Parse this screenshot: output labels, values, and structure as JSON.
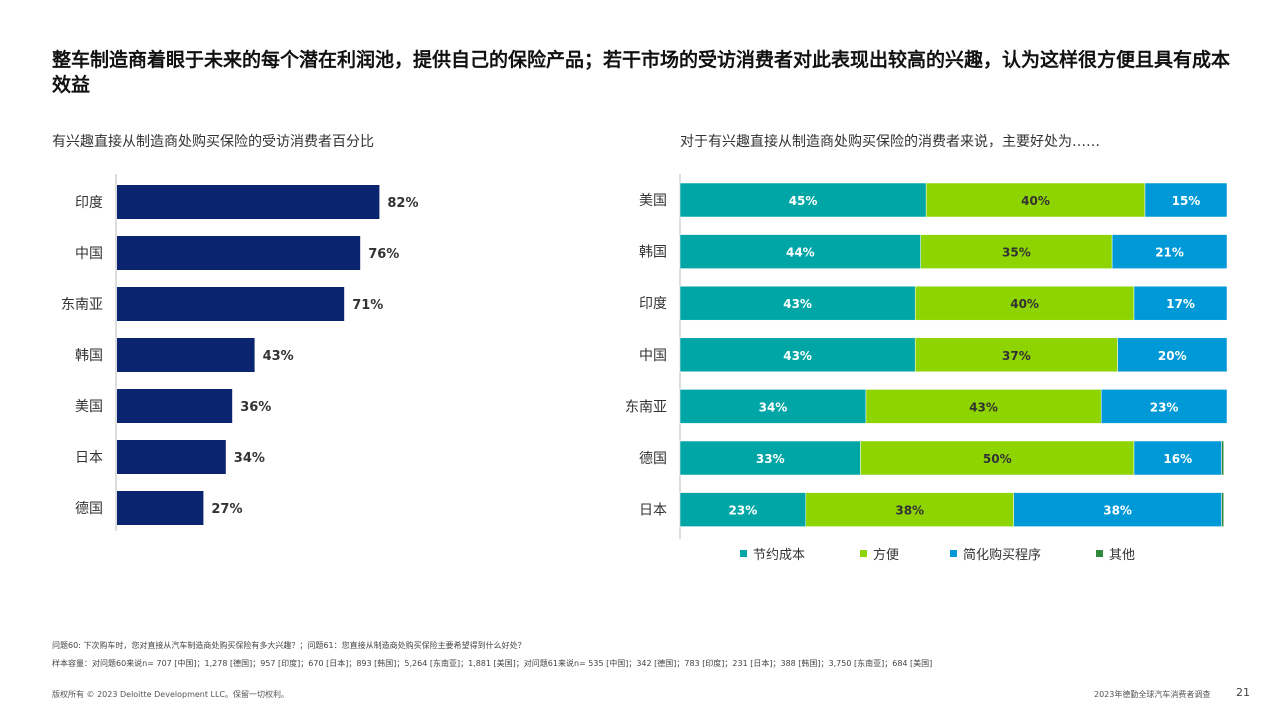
{
  "title": "整车制造商着眼于未来的每个潜在利润池，提供自己的保险产品；若干市场的受访消费者对此表现出较高的兴趣，认为这样很方便且具有成本效益",
  "left_subtitle": "有兴趣直接从制造商处购买保险的受访消费者百分比",
  "right_subtitle": "对于有兴趣直接从制造商处购买保险的消费者来说，主要好处为……",
  "chart_data": [
    {
      "type": "bar",
      "orientation": "horizontal",
      "title": "有兴趣直接从制造商处购买保险的受访消费者百分比",
      "categories": [
        "印度",
        "中国",
        "东南亚",
        "韩国",
        "美国",
        "日本",
        "德国"
      ],
      "values": [
        82,
        76,
        71,
        43,
        36,
        34,
        27
      ],
      "value_suffix": "%",
      "xlim": [
        0,
        100
      ],
      "color": "#0b2470"
    },
    {
      "type": "bar",
      "orientation": "horizontal",
      "stacked": true,
      "title": "对于有兴趣直接从制造商处购买保险的消费者来说，主要好处为……",
      "categories": [
        "美国",
        "韩国",
        "印度",
        "中国",
        "东南亚",
        "德国",
        "日本"
      ],
      "series": [
        {
          "name": "节约成本",
          "values": [
            45,
            44,
            43,
            43,
            34,
            33,
            23
          ],
          "color": "#00a6a6"
        },
        {
          "name": "方便",
          "values": [
            40,
            35,
            40,
            37,
            43,
            50,
            38
          ],
          "color": "#8ed400"
        },
        {
          "name": "简化购买程序",
          "values": [
            15,
            21,
            17,
            20,
            23,
            16,
            38
          ],
          "color": "#0099d8"
        },
        {
          "name": "其他",
          "values": [
            0,
            0,
            0,
            0,
            0,
            0.4,
            0.4
          ],
          "color": "#2e8b3d"
        }
      ],
      "value_suffix": "%",
      "xlim": [
        0,
        100
      ],
      "legend": "bottom"
    }
  ],
  "footnotes": {
    "q": "问题60: 下次购车时，您对直接从汽车制造商处购买保险有多大兴趣？；问题61：您直接从制造商处购买保险主要希望得到什么好处？",
    "sample": "样本容量：对问题60来说n= 707 [中国]；1,278 [德国]；957 [印度]；670 [日本]；893 [韩国]；5,264 [东南亚]；1,881 [美国]；对问题61来说n= 535 [中国]；342 [德国]；783 [印度]；231 [日本]；388 [韩国]；3,750 [东南亚]；684 [美国]"
  },
  "footer": {
    "copyright": "版权所有 © 2023 Deloitte Development LLC。保留一切权利。",
    "report": "2023年德勤全球汽车消费者调查",
    "page": "21"
  }
}
